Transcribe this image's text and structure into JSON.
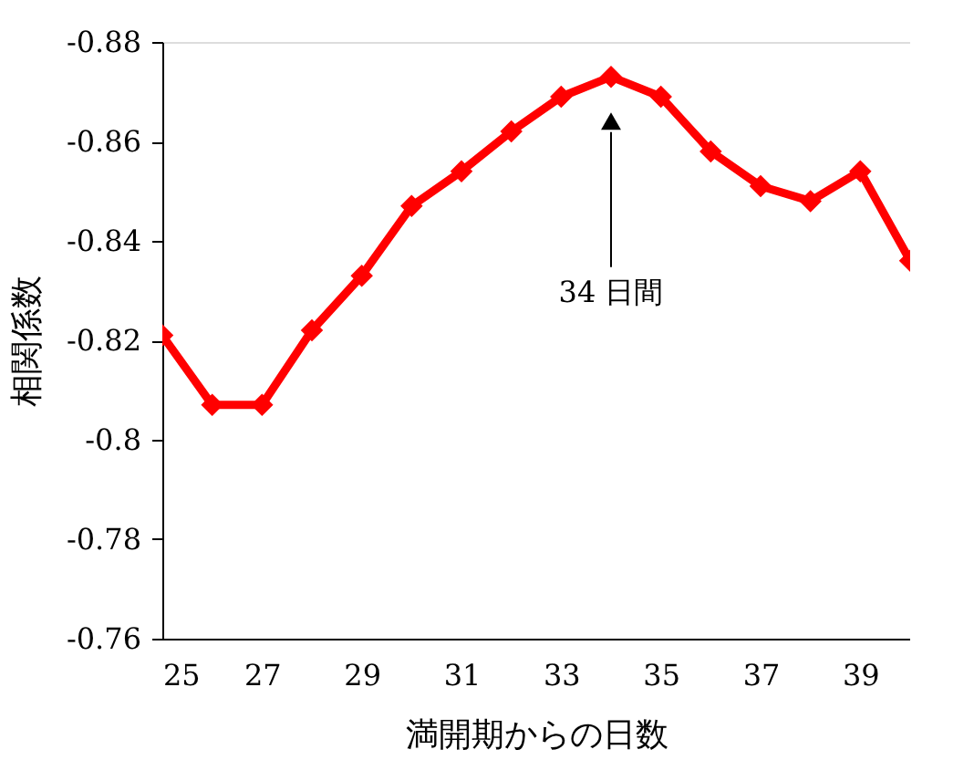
{
  "chart_data": {
    "type": "line",
    "xlabel": "満開期からの日数",
    "ylabel": "相関係数",
    "x": [
      25,
      26,
      27,
      28,
      29,
      30,
      31,
      32,
      33,
      34,
      35,
      36,
      37,
      38,
      39,
      40
    ],
    "series": [
      {
        "color": "#ff0000",
        "values": [
          -0.821,
          -0.807,
          -0.807,
          -0.822,
          -0.833,
          -0.847,
          -0.854,
          -0.862,
          -0.869,
          -0.873,
          -0.869,
          -0.858,
          -0.851,
          -0.848,
          -0.854,
          -0.836
        ]
      }
    ],
    "xlim": [
      25,
      40
    ],
    "xticks": [
      25,
      27,
      29,
      31,
      33,
      35,
      37,
      39
    ],
    "ylim": [
      -0.76,
      -0.88
    ],
    "yticks": [
      -0.88,
      -0.86,
      -0.84,
      -0.82,
      -0.8,
      -0.78,
      -0.76
    ],
    "annotations": [
      "34 日間"
    ],
    "marker": "diamond",
    "line_style": "solid",
    "grid": false
  }
}
